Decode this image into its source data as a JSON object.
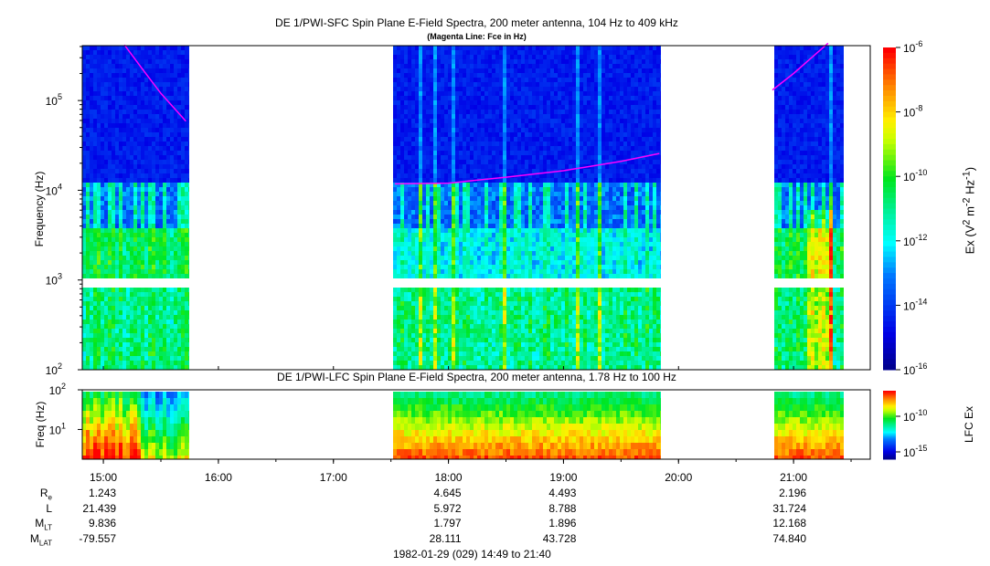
{
  "chart_data": [
    {
      "type": "heatmap",
      "title": "DE 1/PWI-SFC  Spin Plane E-Field Spectra, 200 meter antenna, 104 Hz to 409 kHz",
      "subtitle": "(Magenta Line: Fce in Hz)",
      "ylabel": "Frequency (Hz)",
      "yscale": "log",
      "ylim": [
        100,
        409000
      ],
      "yticks": [
        {
          "base": "10",
          "exp": "2"
        },
        {
          "base": "10",
          "exp": "3"
        },
        {
          "base": "10",
          "exp": "4"
        },
        {
          "base": "10",
          "exp": "5"
        }
      ],
      "xlim": [
        "14:49",
        "21:40"
      ],
      "xticks": [
        "15:00",
        "16:00",
        "17:00",
        "18:00",
        "19:00",
        "20:00",
        "21:00"
      ],
      "data_intervals": [
        [
          "14:49",
          "15:45"
        ],
        [
          "17:31",
          "19:51"
        ],
        [
          "20:50",
          "21:26"
        ]
      ],
      "colorbar": {
        "label": "Ex (V2 m-2 Hz-1)",
        "label_parts": {
          "a": "Ex (V",
          "b": "2",
          "c": " m",
          "d": "-2",
          "e": " Hz",
          "f": "-1",
          "g": ")"
        },
        "scale": "log",
        "range": [
          1e-16,
          1e-06
        ],
        "ticks": [
          {
            "base": "10",
            "exp": "-6"
          },
          {
            "base": "10",
            "exp": "-8"
          },
          {
            "base": "10",
            "exp": "-10"
          },
          {
            "base": "10",
            "exp": "-12"
          },
          {
            "base": "10",
            "exp": "-14"
          },
          {
            "base": "10",
            "exp": "-16"
          }
        ]
      },
      "fce_line": {
        "color": "#ff00ff",
        "segments": [
          [
            [
              "15:11",
              417000
            ],
            [
              "15:20",
              230000
            ],
            [
              "15:30",
              120000
            ],
            [
              "15:43",
              59000
            ]
          ],
          [
            [
              "17:32",
              11800
            ],
            [
              "18:00",
              12000
            ],
            [
              "18:30",
              14000
            ],
            [
              "19:00",
              16500
            ],
            [
              "19:30",
              21000
            ],
            [
              "19:50",
              25700
            ]
          ],
          [
            [
              "20:49",
              131000
            ],
            [
              "21:00",
              200000
            ],
            [
              "21:18",
              436000
            ]
          ]
        ]
      }
    },
    {
      "type": "heatmap",
      "title": "DE 1/PWI-LFC  Spin Plane E-Field Spectra, 200 meter antenna, 1.78 Hz to 100 Hz",
      "ylabel": "Freq (Hz)",
      "yscale": "log",
      "ylim": [
        1.78,
        100
      ],
      "yticks": [
        {
          "base": "10",
          "exp": "1"
        },
        {
          "base": "10",
          "exp": "2"
        }
      ],
      "xlim": [
        "14:49",
        "21:40"
      ],
      "data_intervals": [
        [
          "14:49",
          "15:45"
        ],
        [
          "17:31",
          "19:51"
        ],
        [
          "20:50",
          "21:26"
        ]
      ],
      "colorbar": {
        "label": "LFC Ex",
        "scale": "log",
        "ticks": [
          {
            "base": "10",
            "exp": "-10"
          },
          {
            "base": "10",
            "exp": "-15"
          }
        ]
      }
    }
  ],
  "ephemeris": {
    "rows": [
      {
        "label": "R",
        "sub": "e",
        "values": [
          "1.243",
          "4.645",
          "4.493",
          "2.196"
        ]
      },
      {
        "label": "L",
        "sub": "",
        "values": [
          "21.439",
          "5.972",
          "8.788",
          "31.724"
        ]
      },
      {
        "label": "M",
        "sub": "LT",
        "values": [
          "9.836",
          "1.797",
          "1.896",
          "12.168"
        ]
      },
      {
        "label": "M",
        "sub": "LAT",
        "values": [
          "-79.557",
          "28.111",
          "43.728",
          "74.840"
        ]
      }
    ],
    "times": [
      "15:00",
      "18:00",
      "19:00",
      "21:00"
    ]
  },
  "footer": "1982-01-29 (029) 14:49 to 21:40"
}
